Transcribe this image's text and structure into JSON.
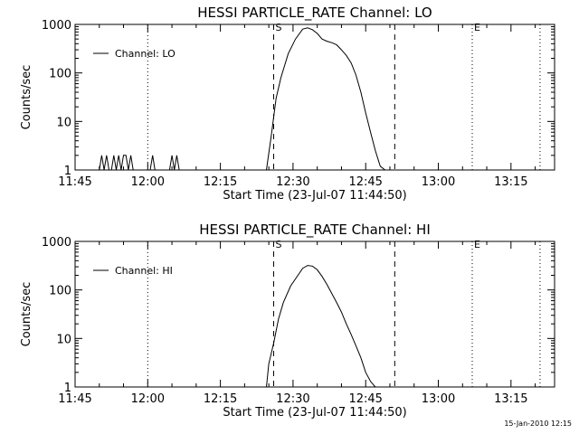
{
  "footer": {
    "timestamp": "15-Jan-2010 12:15"
  },
  "chart_data": [
    {
      "type": "line",
      "title": "HESSI PARTICLE_RATE Channel: LO",
      "xlabel": "Start Time (23-Jul-07 11:44:50)",
      "ylabel": "Counts/sec",
      "yscale": "log",
      "ylim": [
        1,
        1000
      ],
      "xlim": [
        "11:45",
        "13:24"
      ],
      "xticks": [
        "11:45",
        "12:00",
        "12:15",
        "12:30",
        "12:45",
        "13:00",
        "13:15"
      ],
      "yticks": [
        "1",
        "10",
        "100",
        "1000"
      ],
      "legend": {
        "label": "Channel: LO",
        "position": "top-left"
      },
      "markers": [
        {
          "label": "S",
          "time": "12:26",
          "style": "dashed"
        },
        {
          "label": "",
          "time": "12:51",
          "style": "dashed"
        },
        {
          "label": "",
          "time": "12:00",
          "style": "dotted"
        },
        {
          "label": "E",
          "time": "13:07",
          "style": "dotted"
        },
        {
          "label": "",
          "time": "13:21",
          "style": "dotted"
        }
      ],
      "grid": false,
      "series": [
        {
          "name": "Channel: LO",
          "x": [
            "11:50",
            "11:50.5",
            "11:51",
            "11:51.5",
            "11:52",
            "11:52.5",
            "11:53",
            "11:53.5",
            "11:54",
            "11:54.5",
            "11:55",
            "11:55.5",
            "11:56",
            "11:56.5",
            "11:57",
            "12:00.5",
            "12:01",
            "12:01.5",
            "12:04.5",
            "12:05",
            "12:05.5",
            "12:06",
            "12:06.5",
            "12:24.5",
            "12:25.5",
            "12:26.5",
            "12:27.5",
            "12:29",
            "12:30.5",
            "12:32",
            "12:33",
            "12:34",
            "12:35",
            "12:36",
            "12:37",
            "12:38",
            "12:39",
            "12:40",
            "12:41",
            "12:42",
            "12:43",
            "12:44",
            "12:45",
            "12:46",
            "12:47",
            "12:48",
            "12:49",
            "12:50",
            "12:51"
          ],
          "y": [
            1,
            2,
            1,
            2,
            1,
            1,
            2,
            1,
            2,
            1,
            2,
            2,
            1,
            2,
            1,
            1,
            2,
            1,
            1,
            2,
            1,
            2,
            1,
            1,
            5,
            30,
            80,
            250,
            500,
            800,
            850,
            780,
            650,
            500,
            450,
            420,
            380,
            300,
            230,
            160,
            90,
            40,
            15,
            6,
            2.5,
            1.2,
            1,
            1,
            1
          ]
        }
      ]
    },
    {
      "type": "line",
      "title": "HESSI PARTICLE_RATE Channel: HI",
      "xlabel": "Start Time (23-Jul-07 11:44:50)",
      "ylabel": "Counts/sec",
      "yscale": "log",
      "ylim": [
        1,
        1000
      ],
      "xlim": [
        "11:45",
        "13:24"
      ],
      "xticks": [
        "11:45",
        "12:00",
        "12:15",
        "12:30",
        "12:45",
        "13:00",
        "13:15"
      ],
      "yticks": [
        "1",
        "10",
        "100",
        "1000"
      ],
      "legend": {
        "label": "Channel: HI",
        "position": "top-left"
      },
      "markers": [
        {
          "label": "S",
          "time": "12:26",
          "style": "dashed"
        },
        {
          "label": "",
          "time": "12:51",
          "style": "dashed"
        },
        {
          "label": "",
          "time": "12:00",
          "style": "dotted"
        },
        {
          "label": "E",
          "time": "13:07",
          "style": "dotted"
        },
        {
          "label": "",
          "time": "13:21",
          "style": "dotted"
        }
      ],
      "grid": false,
      "series": [
        {
          "name": "Channel: HI",
          "x": [
            "12:24.5",
            "12:25",
            "12:26",
            "12:27",
            "12:28",
            "12:29.5",
            "12:31",
            "12:32",
            "12:33",
            "12:34",
            "12:35",
            "12:36",
            "12:37",
            "12:38",
            "12:39",
            "12:40",
            "12:41",
            "12:42",
            "12:43",
            "12:44",
            "12:45",
            "12:46",
            "12:47"
          ],
          "y": [
            1,
            3,
            8,
            25,
            55,
            120,
            200,
            280,
            320,
            310,
            260,
            190,
            130,
            85,
            55,
            35,
            20,
            12,
            7,
            4,
            2,
            1.3,
            1
          ]
        }
      ]
    }
  ]
}
